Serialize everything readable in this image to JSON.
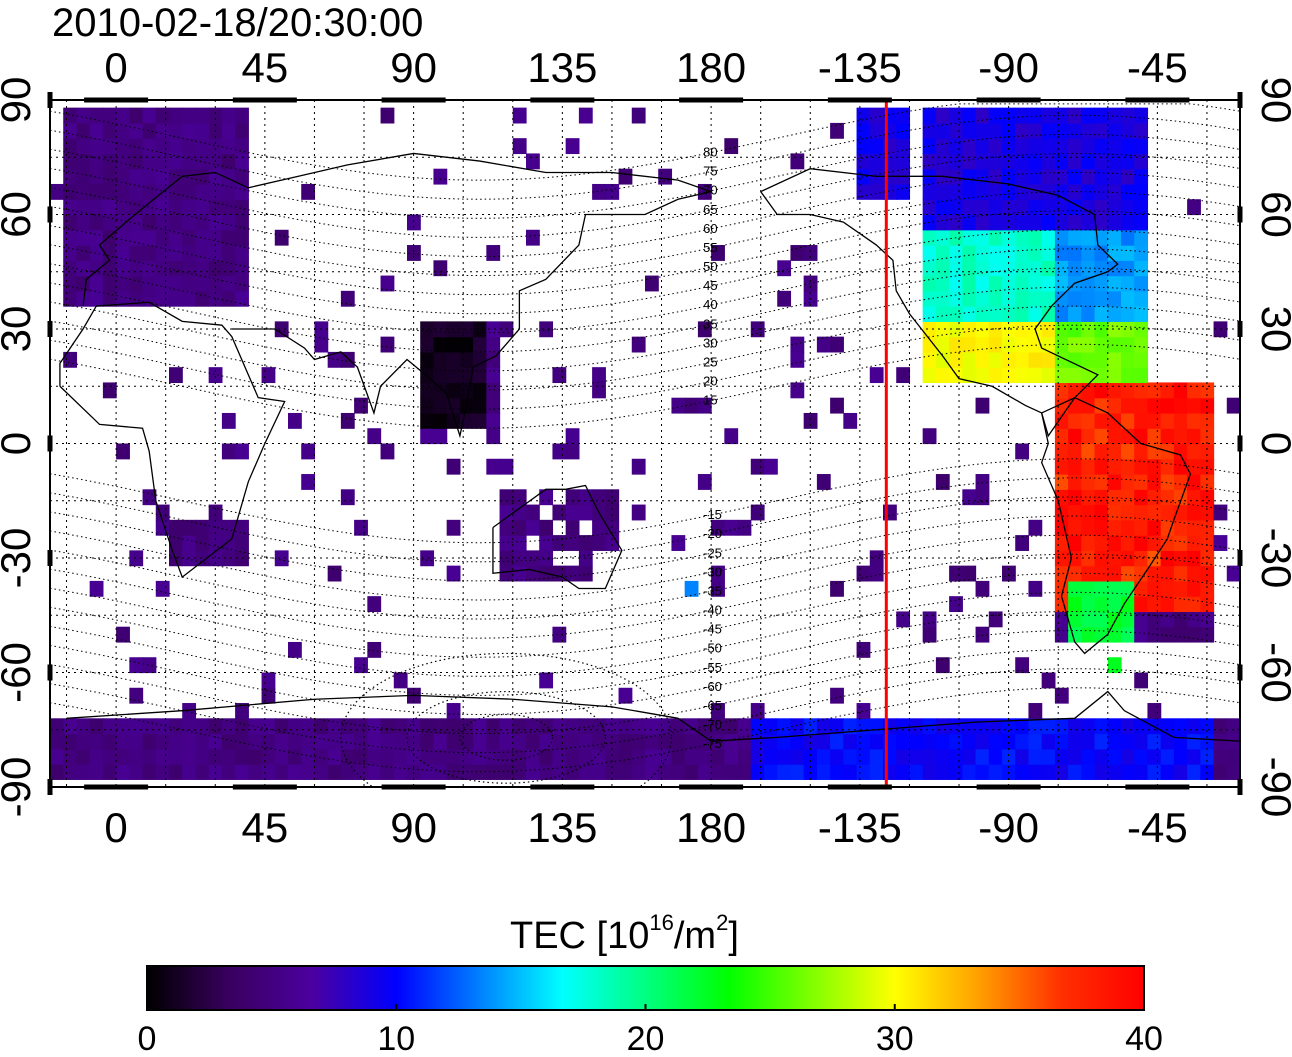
{
  "title": "2010-02-18/20:30:00",
  "map": {
    "projection": "equirectangular",
    "lon_range": [
      -20,
      340
    ],
    "lat_range": [
      -90,
      90
    ],
    "top_lon_ticks": [
      "0",
      "45",
      "90",
      "135",
      "180",
      "-135",
      "-90",
      "-45"
    ],
    "bottom_lon_ticks": [
      "0",
      "45",
      "90",
      "135",
      "180",
      "-135",
      "-90",
      "-45"
    ],
    "lon_tick_values": [
      0,
      45,
      90,
      135,
      180,
      225,
      270,
      315
    ],
    "left_lat_ticks": [
      "90",
      "60",
      "30",
      "0",
      "-30",
      "-60",
      "-90"
    ],
    "right_lat_ticks": [
      "90",
      "60",
      "30",
      "0",
      "-30",
      "-60",
      "-90"
    ],
    "lat_tick_values": [
      90,
      60,
      30,
      0,
      -30,
      -60,
      -90
    ],
    "grid": "dotted",
    "terminator_longitude": -127,
    "terminator_color": "#ff0000",
    "magnetic_contour_labels": [
      "80",
      "75",
      "70",
      "65",
      "60",
      "55",
      "50",
      "45",
      "40",
      "35",
      "30",
      "25",
      "20",
      "15",
      "-15",
      "-20",
      "-25",
      "-30",
      "-35",
      "-40",
      "-45",
      "-50",
      "-55",
      "-60",
      "-65",
      "-70",
      "-75"
    ]
  },
  "colorbar": {
    "label": "TEC  [10",
    "label_sup": "16",
    "label_mid": "/m",
    "label_sup2": "2",
    "label_end": "]",
    "min": 0,
    "max": 40,
    "ticks": [
      "0",
      "10",
      "20",
      "30",
      "40"
    ],
    "tick_values": [
      0,
      10,
      20,
      30,
      40
    ],
    "colormap": "jet-dark",
    "stops": [
      "#000000",
      "#3a0060",
      "#4b00a0",
      "#0000ff",
      "#0080ff",
      "#00ffff",
      "#00ff80",
      "#00ff00",
      "#80ff00",
      "#ffff00",
      "#ffa000",
      "#ff3000",
      "#ff0000"
    ]
  },
  "chart_data": {
    "type": "heatmap",
    "title": "2010-02-18/20:30:00",
    "variable": "TEC",
    "units": "10^16/m^2",
    "regions": [
      {
        "lon": [
          -15,
          40
        ],
        "lat": [
          35,
          87
        ],
        "tec": 5
      },
      {
        "lon": [
          250,
          300
        ],
        "lat": [
          15,
          55
        ],
        "tec": 22
      },
      {
        "lon": [
          230,
          300
        ],
        "lat": [
          55,
          85
        ],
        "tec": 9
      },
      {
        "lon": [
          285,
          325
        ],
        "lat": [
          -40,
          10
        ],
        "tec": 37
      },
      {
        "lon": [
          290,
          305
        ],
        "lat": [
          -55,
          -40
        ],
        "tec": 24
      },
      {
        "lon": [
          95,
          110
        ],
        "lat": [
          0,
          30
        ],
        "tec": 1
      },
      {
        "lon": [
          15,
          35
        ],
        "lat": [
          -35,
          -20
        ],
        "tec": 5
      },
      {
        "lon": [
          -15,
          340
        ],
        "lat": [
          -87,
          -75
        ],
        "tec": 7
      }
    ]
  }
}
